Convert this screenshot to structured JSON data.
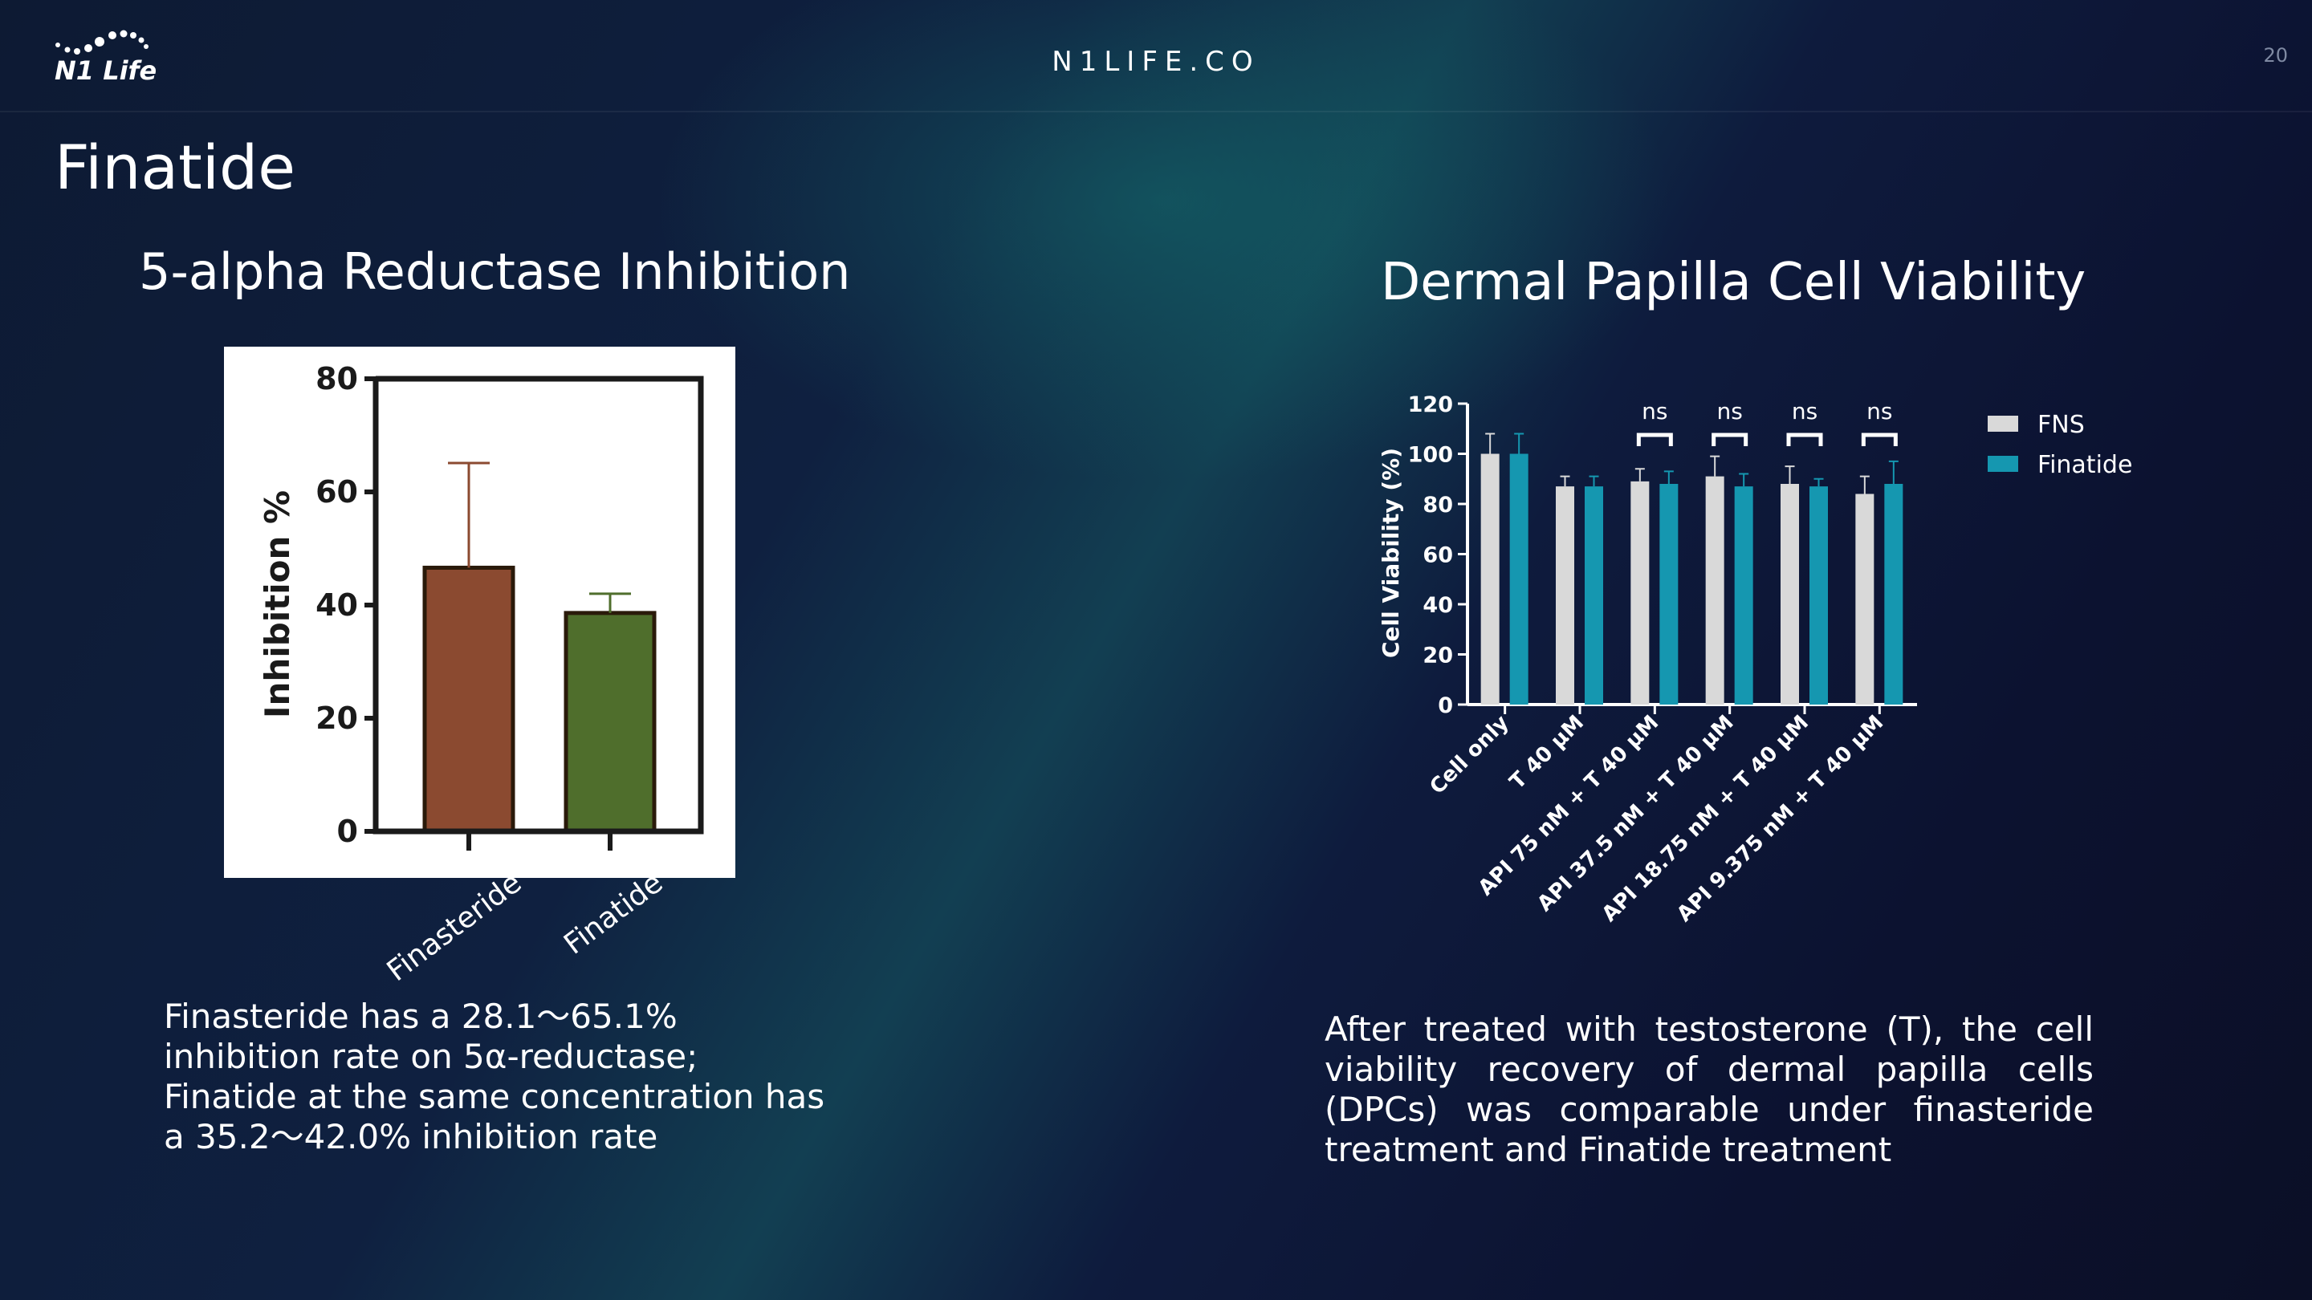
{
  "header": {
    "logo": "N1 Life",
    "site": "N1LIFE.CO",
    "page": "20"
  },
  "title": "Finatide",
  "chart_data": [
    {
      "type": "bar",
      "title": "5-alpha Reductase Inhibition",
      "ylabel": "Inhibition %",
      "categories": [
        "Finasteride",
        "Finatide"
      ],
      "values": [
        46.6,
        38.6
      ],
      "errors": [
        18.5,
        3.4
      ],
      "colors": [
        "#8b4a30",
        "#4f6e2c"
      ],
      "ylim": [
        0,
        80
      ],
      "yticks": [
        0,
        20,
        40,
        60,
        80
      ]
    },
    {
      "type": "grouped-bar",
      "title": "Dermal Papilla Cell Viability",
      "ylabel": "Cell Viability (%)",
      "categories": [
        "Cell only",
        "T 40 μM",
        "API 75 nM + T 40 μM",
        "API 37.5 nM + T 40 μM",
        "API 18.75 nM + T 40 μM",
        "API 9.375 nM + T 40 μM"
      ],
      "series": [
        {
          "name": "FNS",
          "color": "#d9d9d9",
          "values": [
            100,
            87,
            89,
            91,
            88,
            84
          ],
          "errors": [
            8,
            4,
            5,
            8,
            7,
            7
          ]
        },
        {
          "name": "Finatide",
          "color": "#1597b0",
          "values": [
            100,
            87,
            88,
            87,
            87,
            88
          ],
          "errors": [
            8,
            4,
            5,
            5,
            3,
            9
          ]
        }
      ],
      "significance": [
        null,
        null,
        "ns",
        "ns",
        "ns",
        "ns"
      ],
      "ylim": [
        0,
        120
      ],
      "yticks": [
        0,
        20,
        40,
        60,
        80,
        100,
        120
      ],
      "legend": "right"
    }
  ],
  "notes": [
    "Finasteride has a 28.1～65.1% inhibition rate on 5α-reductase; Finatide at the same concentration has a 35.2～42.0% inhibition rate",
    "After treated with testosterone (T), the cell viability recovery of dermal papilla cells (DPCs) was comparable under finasteride treatment and Finatide treatment"
  ]
}
